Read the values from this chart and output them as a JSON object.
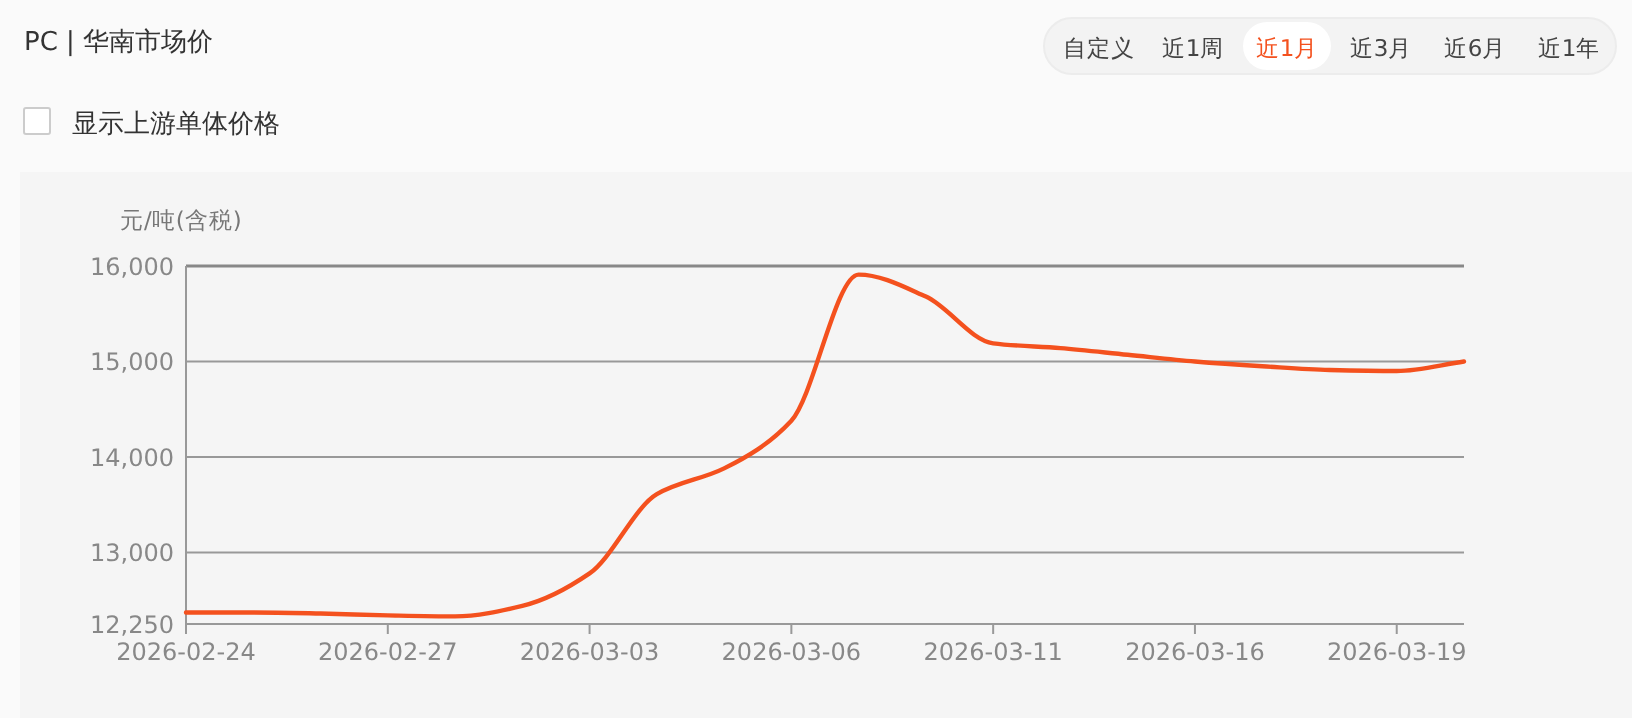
{
  "chart_data": {
    "type": "line",
    "title": "PC | 华南市场价",
    "ylabel": "元/吨(含税)",
    "annotations": [
      "显示上游单体价格",
      "自定义",
      "近1周",
      "近1月",
      "近3月",
      "近6月",
      "近1年"
    ],
    "categories": [
      "2026-02-24",
      null,
      null,
      "2026-02-27",
      null,
      null,
      "2026-03-03",
      null,
      null,
      "2026-03-06",
      null,
      null,
      "2026-03-11",
      null,
      null,
      "2026-03-16",
      null,
      null,
      "2026-03-19",
      null
    ],
    "series": [
      {
        "color": "#f4511e",
        "values": [
          12370,
          12370,
          12360,
          12340,
          12330,
          12440,
          12780,
          13610,
          13880,
          14380,
          15910,
          15680,
          15190,
          15140,
          15070,
          15000,
          14950,
          14910,
          14900,
          15000
        ]
      }
    ],
    "ylim": [
      12250,
      16000
    ],
    "yticks": [
      {
        "value": 12250,
        "label": "12,250"
      },
      {
        "value": 13000,
        "label": "13,000"
      },
      {
        "value": 14000,
        "label": "14,000"
      },
      {
        "value": 15000,
        "label": "15,000"
      },
      {
        "value": 16000,
        "label": "16,000"
      }
    ],
    "grid": "y",
    "marker": "none",
    "line_style": "solid"
  }
}
